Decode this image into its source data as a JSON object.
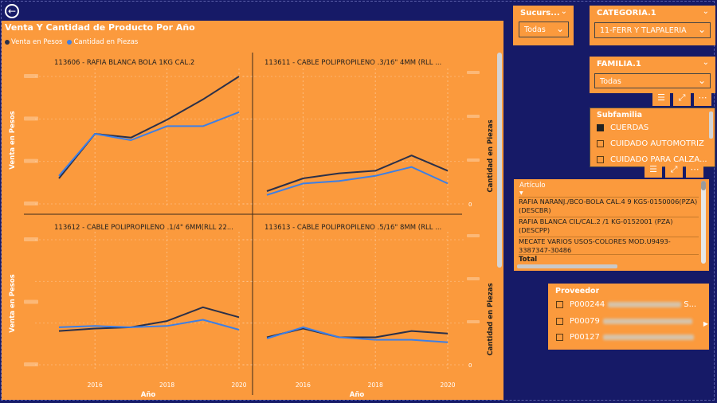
{
  "back_icon": "arrow-left-icon",
  "main": {
    "title": "Venta Y Cantidad de Producto Por Año",
    "legend": [
      {
        "label": "Venta en Pesos",
        "color": "#2b3049"
      },
      {
        "label": "Cantidad en Piezas",
        "color": "#3c7fe6"
      }
    ],
    "left_axis_label": "Venta en Pesos",
    "right_axis_label": "Cantidad en Piezas",
    "x_axis_label": "Año",
    "x_ticks": [
      "2016",
      "2018",
      "2020"
    ]
  },
  "chart_data": [
    {
      "type": "line",
      "title": "113606 - RAFIA BLANCA BOLA 1KG CAL.2",
      "x": [
        2015,
        2016,
        2017,
        2018,
        2019,
        2020
      ],
      "series": [
        {
          "name": "Venta en Pesos",
          "values": [
            0.2,
            0.55,
            0.52,
            0.66,
            0.82,
            1.0
          ]
        },
        {
          "name": "Cantidad en Piezas",
          "values": [
            0.22,
            0.55,
            0.5,
            0.61,
            0.61,
            0.72
          ]
        }
      ],
      "yleft_ticks": [
        "",
        "",
        "",
        ""
      ],
      "yright_ticks": [],
      "show_x_ticks": false
    },
    {
      "type": "line",
      "title": "113611 - CABLE POLIPROPILENO .3/16\" 4MM (RLL ...",
      "x": [
        2015,
        2016,
        2017,
        2018,
        2019,
        2020
      ],
      "series": [
        {
          "name": "Venta en Pesos",
          "values": [
            0.1,
            0.2,
            0.24,
            0.26,
            0.38,
            0.26
          ]
        },
        {
          "name": "Cantidad en Piezas",
          "values": [
            0.07,
            0.16,
            0.18,
            0.22,
            0.29,
            0.16
          ]
        }
      ],
      "yleft_ticks": [],
      "yright_ticks": [
        "",
        "",
        "",
        "0"
      ],
      "show_x_ticks": false
    },
    {
      "type": "line",
      "title": "113612 - CABLE POLIPROPILENO .1/4\" 6MM(RLL 22...",
      "x": [
        2015,
        2016,
        2017,
        2018,
        2019,
        2020
      ],
      "series": [
        {
          "name": "Venta en Pesos",
          "values": [
            0.27,
            0.29,
            0.3,
            0.35,
            0.46,
            0.38
          ]
        },
        {
          "name": "Cantidad en Piezas",
          "values": [
            0.3,
            0.31,
            0.3,
            0.31,
            0.36,
            0.28
          ]
        }
      ],
      "yleft_ticks": [
        "",
        "",
        ""
      ],
      "yright_ticks": [],
      "show_x_ticks": true
    },
    {
      "type": "line",
      "title": "113613 - CABLE POLIPROPILENO .5/16\" 8MM (RLL ...",
      "x": [
        2015,
        2016,
        2017,
        2018,
        2019,
        2020
      ],
      "series": [
        {
          "name": "Venta en Pesos",
          "values": [
            0.22,
            0.29,
            0.22,
            0.22,
            0.27,
            0.25
          ]
        },
        {
          "name": "Cantidad en Piezas",
          "values": [
            0.21,
            0.3,
            0.22,
            0.2,
            0.2,
            0.18
          ]
        }
      ],
      "yleft_ticks": [],
      "yright_ticks": [
        "",
        "",
        "",
        "0"
      ],
      "show_x_ticks": true
    }
  ],
  "sucursal": {
    "title": "Sucurs...",
    "value": "Todas"
  },
  "categoria": {
    "title": "CATEGORIA.1",
    "value": "11-FERR Y TLAPALERIA"
  },
  "familia": {
    "title": "FAMILIA.1",
    "value": "Todas"
  },
  "toolbar_icons": [
    "filter-icon",
    "focus-mode-icon",
    "more-options-icon"
  ],
  "subfamilia": {
    "title": "Subfamilia",
    "items": [
      {
        "label": "CUERDAS",
        "checked": true
      },
      {
        "label": "CUIDADO AUTOMOTRIZ",
        "checked": false
      },
      {
        "label": "CUIDADO PARA CALZA...",
        "checked": false
      }
    ]
  },
  "articulo": {
    "header": "Artículo",
    "rows": [
      "RAFIA NARANJ./BCO-BOLA CAL.4 9 KGS-0150006(PZA) (DESCBR)",
      "RAFIA BLANCA CIL/CAL.2 /1 KG-0152001 (PZA) (DESCPP)",
      "MECATE VARIOS USOS-COLORES MOD.U9493-3387347-30486"
    ],
    "total_label": "Total"
  },
  "proveedor": {
    "title": "Proveedor",
    "items": [
      {
        "code": "P000244",
        "suffix": "S..."
      },
      {
        "code": "P00079",
        "suffix": ""
      },
      {
        "code": "P00127",
        "suffix": ""
      }
    ]
  },
  "colors": {
    "background": "#161a67",
    "card": "#fb9a3d",
    "sales_line": "#2b3049",
    "qty_line": "#3c7fe6"
  }
}
